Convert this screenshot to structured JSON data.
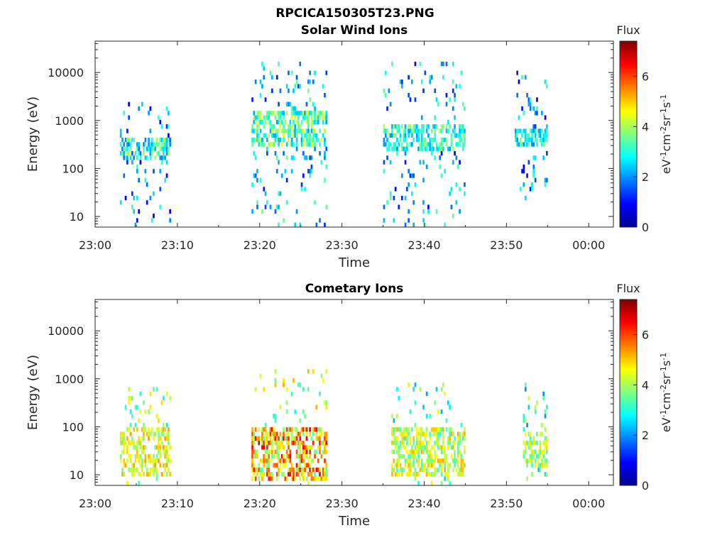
{
  "figure": {
    "filename": "RPCICA150305T23.PNG"
  },
  "chart_data": [
    {
      "type": "heatmap",
      "title": "Solar Wind Ions",
      "xlabel": "Time",
      "ylabel": "Energy (eV)",
      "x_ticks": [
        "23:00",
        "23:10",
        "23:20",
        "23:30",
        "23:40",
        "23:50",
        "00:00"
      ],
      "x_range_min": [
        0,
        63
      ],
      "y_scale": "log",
      "y_ticks": [
        10,
        100,
        1000,
        10000
      ],
      "y_tick_labels": [
        "10",
        "100",
        "1000",
        "10000"
      ],
      "y_range_eV": [
        6,
        45000
      ],
      "colorbar": {
        "title": "Flux",
        "label": "eV-1cm-2sr-1s-1",
        "ticks": [
          0,
          2,
          4,
          6
        ],
        "range": [
          0,
          7.4
        ],
        "colormap": "jet"
      },
      "bursts": [
        {
          "t_min": [
            3,
            9
          ],
          "energy_eV": [
            6,
            3000
          ],
          "core_eV": [
            180,
            500
          ],
          "flux_core": 2.6,
          "flux_peak": 3.6
        },
        {
          "t_min": [
            19,
            28
          ],
          "energy_eV": [
            6,
            20000
          ],
          "core_eV": [
            300,
            1800
          ],
          "flux_core": 3.0,
          "flux_peak": 4.0
        },
        {
          "t_min": [
            35,
            45
          ],
          "energy_eV": [
            6,
            20000
          ],
          "core_eV": [
            250,
            900
          ],
          "flux_core": 2.8,
          "flux_peak": 3.6
        },
        {
          "t_min": [
            51,
            55
          ],
          "energy_eV": [
            25,
            12000
          ],
          "core_eV": [
            300,
            700
          ],
          "flux_core": 2.6,
          "flux_peak": 3.2
        }
      ]
    },
    {
      "type": "heatmap",
      "title": "Cometary Ions",
      "xlabel": "Time",
      "ylabel": "Energy (eV)",
      "x_ticks": [
        "23:00",
        "23:10",
        "23:20",
        "23:30",
        "23:40",
        "23:50",
        "00:00"
      ],
      "x_range_min": [
        0,
        63
      ],
      "y_scale": "log",
      "y_ticks": [
        10,
        100,
        1000,
        10000
      ],
      "y_tick_labels": [
        "10",
        "100",
        "1000",
        "10000"
      ],
      "y_range_eV": [
        6,
        45000
      ],
      "colorbar": {
        "title": "Flux",
        "label": "eV-1cm-2sr-1s-1",
        "ticks": [
          0,
          2,
          4,
          6
        ],
        "range": [
          0,
          7.4
        ],
        "colormap": "jet"
      },
      "bursts": [
        {
          "t_min": [
            3,
            9
          ],
          "energy_eV": [
            6,
            800
          ],
          "core_eV": [
            10,
            120
          ],
          "flux_core": 4.3,
          "flux_peak": 4.9
        },
        {
          "t_min": [
            19,
            28
          ],
          "energy_eV": [
            6,
            1600
          ],
          "core_eV": [
            8,
            100
          ],
          "flux_core": 4.6,
          "flux_peak": 6.2
        },
        {
          "t_min": [
            36,
            45
          ],
          "energy_eV": [
            6,
            1000
          ],
          "core_eV": [
            10,
            100
          ],
          "flux_core": 4.0,
          "flux_peak": 4.8
        },
        {
          "t_min": [
            52,
            55
          ],
          "energy_eV": [
            8,
            1000
          ],
          "core_eV": [
            15,
            80
          ],
          "flux_core": 3.8,
          "flux_peak": 4.5
        }
      ]
    }
  ]
}
